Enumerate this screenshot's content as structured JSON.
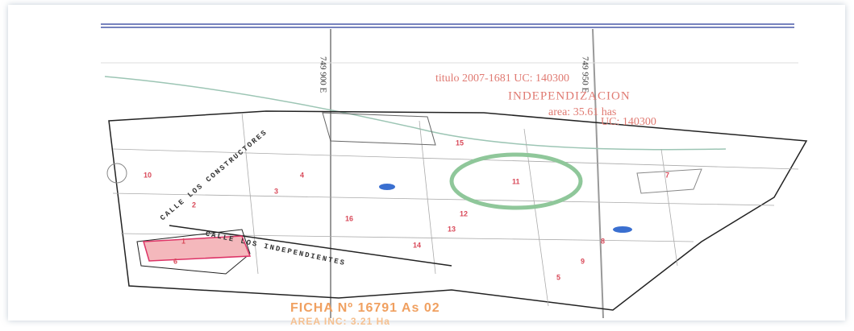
{
  "map": {
    "coords": [
      "749 900 E",
      "749 950 E"
    ],
    "info": {
      "title": "titulo 2007-1681   UC: 140300",
      "heading": "INDEPENDIZACION",
      "area": "area: 35.61 has",
      "uc": "UC: 140300"
    },
    "streets": [
      "CALLE LOS CONSTRUCTORES",
      "CALLE LOS INDEPENDIENTES"
    ],
    "lots": [
      "10",
      "3",
      "2",
      "4",
      "16",
      "12",
      "13",
      "14",
      "15",
      "5",
      "7",
      "8",
      "9",
      "1",
      "6",
      "11"
    ],
    "footer": {
      "ficha": "FICHA Nº 16791 As 02",
      "area": "AREA INC: 3.21 Ha"
    }
  }
}
